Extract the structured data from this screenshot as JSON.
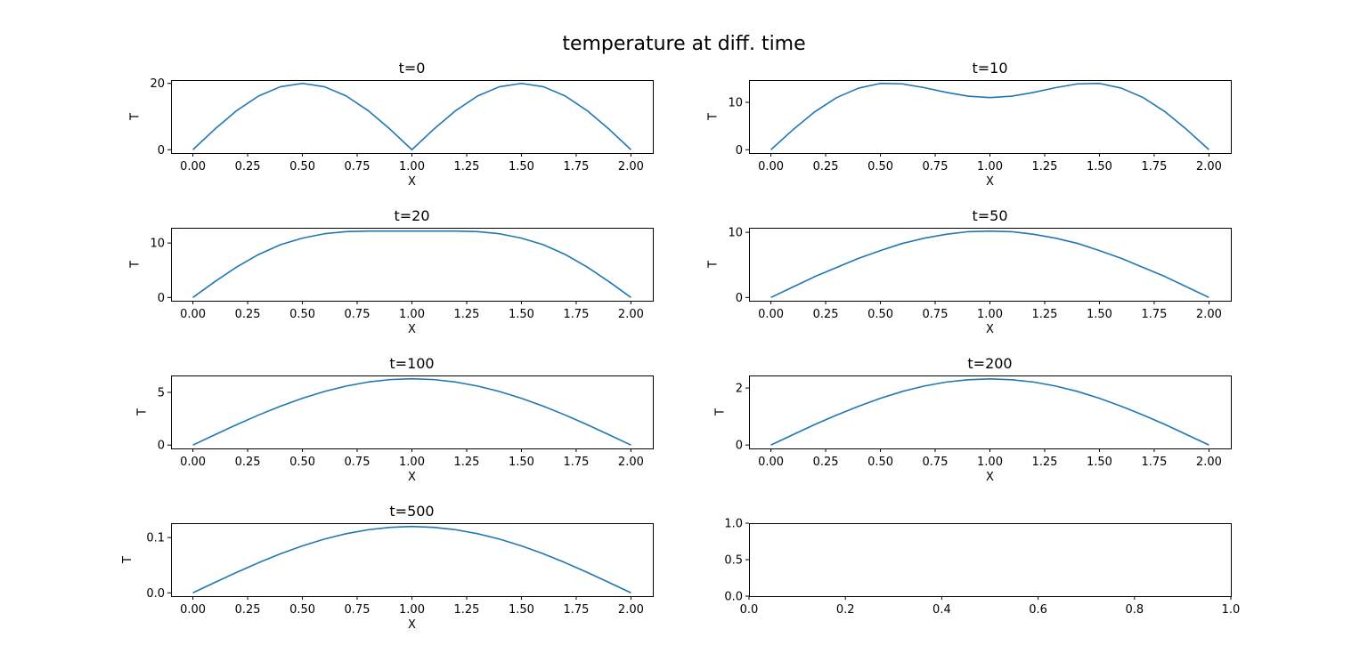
{
  "chart_data": {
    "type": "line",
    "title": "temperature at diff. time",
    "line_color": "#1f77b4",
    "panels": [
      {
        "title": "t=0",
        "xlabel": "X",
        "ylabel": "T",
        "xlim": [
          -0.1,
          2.1
        ],
        "ylim": [
          -1,
          21
        ],
        "xticks": [
          "0.00",
          "0.25",
          "0.50",
          "0.75",
          "1.00",
          "1.25",
          "1.50",
          "1.75",
          "2.00"
        ],
        "yticks": [
          "0",
          "20"
        ],
        "x": [
          0,
          0.1,
          0.2,
          0.3,
          0.4,
          0.5,
          0.6,
          0.7,
          0.8,
          0.9,
          1.0,
          1.1,
          1.2,
          1.3,
          1.4,
          1.5,
          1.6,
          1.7,
          1.8,
          1.9,
          2.0
        ],
        "y": [
          0,
          6.2,
          11.8,
          16.2,
          19.0,
          20,
          19.0,
          16.2,
          11.8,
          6.2,
          0,
          6.2,
          11.8,
          16.2,
          19.0,
          20,
          19.0,
          16.2,
          11.8,
          6.2,
          0
        ]
      },
      {
        "title": "t=10",
        "xlabel": "X",
        "ylabel": "T",
        "xlim": [
          -0.1,
          2.1
        ],
        "ylim": [
          -0.7,
          14.7
        ],
        "xticks": [
          "0.00",
          "0.25",
          "0.50",
          "0.75",
          "1.00",
          "1.25",
          "1.50",
          "1.75",
          "2.00"
        ],
        "yticks": [
          "0",
          "10"
        ],
        "x": [
          0,
          0.1,
          0.2,
          0.3,
          0.4,
          0.5,
          0.6,
          0.7,
          0.8,
          0.9,
          1.0,
          1.1,
          1.2,
          1.3,
          1.4,
          1.5,
          1.6,
          1.7,
          1.8,
          1.9,
          2.0
        ],
        "y": [
          0,
          4.2,
          8.0,
          11.0,
          13.0,
          14.0,
          13.9,
          13.1,
          12.1,
          11.3,
          11.0,
          11.3,
          12.1,
          13.1,
          13.9,
          14.0,
          13.0,
          11.0,
          8.0,
          4.2,
          0
        ]
      },
      {
        "title": "t=20",
        "xlabel": "X",
        "ylabel": "T",
        "xlim": [
          -0.1,
          2.1
        ],
        "ylim": [
          -0.6,
          12.8
        ],
        "xticks": [
          "0.00",
          "0.25",
          "0.50",
          "0.75",
          "1.00",
          "1.25",
          "1.50",
          "1.75",
          "2.00"
        ],
        "yticks": [
          "0",
          "10"
        ],
        "x": [
          0,
          0.1,
          0.2,
          0.3,
          0.4,
          0.5,
          0.6,
          0.7,
          0.8,
          0.9,
          1.0,
          1.1,
          1.2,
          1.3,
          1.4,
          1.5,
          1.6,
          1.7,
          1.8,
          1.9,
          2.0
        ],
        "y": [
          0,
          2.9,
          5.6,
          7.9,
          9.7,
          10.9,
          11.7,
          12.1,
          12.2,
          12.2,
          12.2,
          12.2,
          12.2,
          12.1,
          11.7,
          10.9,
          9.7,
          7.9,
          5.6,
          2.9,
          0
        ]
      },
      {
        "title": "t=50",
        "xlabel": "X",
        "ylabel": "T",
        "xlim": [
          -0.1,
          2.1
        ],
        "ylim": [
          -0.5,
          10.7
        ],
        "xticks": [
          "0.00",
          "0.25",
          "0.50",
          "0.75",
          "1.00",
          "1.25",
          "1.50",
          "1.75",
          "2.00"
        ],
        "yticks": [
          "0",
          "10"
        ],
        "x": [
          0,
          0.1,
          0.2,
          0.3,
          0.4,
          0.5,
          0.6,
          0.7,
          0.8,
          0.9,
          1.0,
          1.1,
          1.2,
          1.3,
          1.4,
          1.5,
          1.6,
          1.7,
          1.8,
          1.9,
          2.0
        ],
        "y": [
          0,
          1.6,
          3.2,
          4.6,
          6.0,
          7.2,
          8.3,
          9.1,
          9.7,
          10.1,
          10.2,
          10.1,
          9.7,
          9.1,
          8.3,
          7.2,
          6.0,
          4.6,
          3.2,
          1.6,
          0
        ]
      },
      {
        "title": "t=100",
        "xlabel": "X",
        "ylabel": "T",
        "xlim": [
          -0.1,
          2.1
        ],
        "ylim": [
          -0.32,
          6.6
        ],
        "xticks": [
          "0.00",
          "0.25",
          "0.50",
          "0.75",
          "1.00",
          "1.25",
          "1.50",
          "1.75",
          "2.00"
        ],
        "yticks": [
          "0",
          "5"
        ],
        "x": [
          0,
          0.1,
          0.2,
          0.3,
          0.4,
          0.5,
          0.6,
          0.7,
          0.8,
          0.9,
          1.0,
          1.1,
          1.2,
          1.3,
          1.4,
          1.5,
          1.6,
          1.7,
          1.8,
          1.9,
          2.0
        ],
        "y": [
          0,
          0.98,
          1.94,
          2.85,
          3.69,
          4.44,
          5.08,
          5.6,
          5.98,
          6.21,
          6.29,
          6.21,
          5.98,
          5.6,
          5.08,
          4.44,
          3.69,
          2.85,
          1.94,
          0.98,
          0
        ]
      },
      {
        "title": "t=200",
        "xlabel": "X",
        "ylabel": "T",
        "xlim": [
          -0.1,
          2.1
        ],
        "ylim": [
          -0.12,
          2.44
        ],
        "xticks": [
          "0.00",
          "0.25",
          "0.50",
          "0.75",
          "1.00",
          "1.25",
          "1.50",
          "1.75",
          "2.00"
        ],
        "yticks": [
          "0",
          "2"
        ],
        "x": [
          0,
          0.1,
          0.2,
          0.3,
          0.4,
          0.5,
          0.6,
          0.7,
          0.8,
          0.9,
          1.0,
          1.1,
          1.2,
          1.3,
          1.4,
          1.5,
          1.6,
          1.7,
          1.8,
          1.9,
          2.0
        ],
        "y": [
          0,
          0.36,
          0.72,
          1.05,
          1.36,
          1.64,
          1.88,
          2.07,
          2.21,
          2.29,
          2.32,
          2.29,
          2.21,
          2.07,
          1.88,
          1.64,
          1.36,
          1.05,
          0.72,
          0.36,
          0
        ]
      },
      {
        "title": "t=500",
        "xlabel": "X",
        "ylabel": "T",
        "xlim": [
          -0.1,
          2.1
        ],
        "ylim": [
          -0.006,
          0.126
        ],
        "xticks": [
          "0.00",
          "0.25",
          "0.50",
          "0.75",
          "1.00",
          "1.25",
          "1.50",
          "1.75",
          "2.00"
        ],
        "yticks": [
          "0.0",
          "0.1"
        ],
        "x": [
          0,
          0.1,
          0.2,
          0.3,
          0.4,
          0.5,
          0.6,
          0.7,
          0.8,
          0.9,
          1.0,
          1.1,
          1.2,
          1.3,
          1.4,
          1.5,
          1.6,
          1.7,
          1.8,
          1.9,
          2.0
        ],
        "y": [
          0,
          0.0188,
          0.0371,
          0.0545,
          0.0706,
          0.085,
          0.0972,
          0.107,
          0.1141,
          0.1185,
          0.12,
          0.1185,
          0.1141,
          0.107,
          0.0972,
          0.085,
          0.0706,
          0.0545,
          0.0371,
          0.0188,
          0
        ]
      },
      {
        "title": "",
        "xlabel": "",
        "ylabel": "",
        "xlim": [
          0,
          1
        ],
        "ylim": [
          0,
          1
        ],
        "xticks": [
          "0.0",
          "0.2",
          "0.4",
          "0.6",
          "0.8",
          "1.0"
        ],
        "yticks": [
          "0.0",
          "0.5",
          "1.0"
        ],
        "x": [],
        "y": []
      }
    ]
  }
}
